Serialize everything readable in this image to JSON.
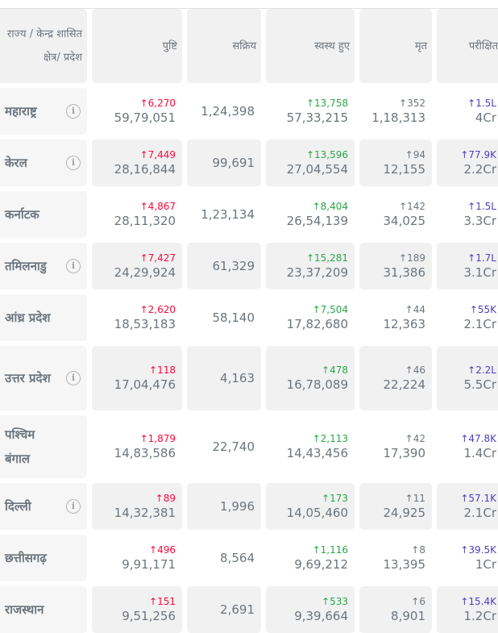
{
  "header": [
    "राज्य / केन्द्र शासित क्षेत्र/ प्रदेश",
    "पुष्टि",
    "सक्रिय",
    "स्वस्थ हुए",
    "मृत",
    "परीक्षित"
  ],
  "colors": {
    "confirmed": "#ff073a",
    "recovered": "#28a745",
    "deceased": "#6c757d",
    "tested": "#4b3fbf"
  },
  "icons": {
    "info": "info-circle-icon",
    "arrow": "arrow-up-icon"
  },
  "rows": [
    {
      "state": "महाराष्ट्र",
      "info": true,
      "confirmed_delta": "↑6,270",
      "confirmed": "59,79,051",
      "active": "1,24,398",
      "recovered_delta": "↑13,758",
      "recovered": "57,33,215",
      "deceased_delta": "↑352",
      "deceased": "1,18,313",
      "tested_delta": "↑1.5L",
      "tested": "4Cr"
    },
    {
      "state": "केरल",
      "info": true,
      "confirmed_delta": "↑7,449",
      "confirmed": "28,16,844",
      "active": "99,691",
      "recovered_delta": "↑13,596",
      "recovered": "27,04,554",
      "deceased_delta": "↑94",
      "deceased": "12,155",
      "tested_delta": "↑77.9K",
      "tested": "2.2Cr"
    },
    {
      "state": "कर्नाटक",
      "info": false,
      "confirmed_delta": "↑4,867",
      "confirmed": "28,11,320",
      "active": "1,23,134",
      "recovered_delta": "↑8,404",
      "recovered": "26,54,139",
      "deceased_delta": "↑142",
      "deceased": "34,025",
      "tested_delta": "↑1.5L",
      "tested": "3.3Cr"
    },
    {
      "state": "तमिलनाडु",
      "info": true,
      "confirmed_delta": "↑7,427",
      "confirmed": "24,29,924",
      "active": "61,329",
      "recovered_delta": "↑15,281",
      "recovered": "23,37,209",
      "deceased_delta": "↑189",
      "deceased": "31,386",
      "tested_delta": "↑1.7L",
      "tested": "3.1Cr"
    },
    {
      "state": "आंध्र प्रदेश",
      "info": false,
      "confirmed_delta": "↑2,620",
      "confirmed": "18,53,183",
      "active": "58,140",
      "recovered_delta": "↑7,504",
      "recovered": "17,82,680",
      "deceased_delta": "↑44",
      "deceased": "12,363",
      "tested_delta": "↑55K",
      "tested": "2.1Cr"
    },
    {
      "state": "उत्तर प्रदेश",
      "info": true,
      "confirmed_delta": "↑118",
      "confirmed": "17,04,476",
      "active": "4,163",
      "recovered_delta": "↑478",
      "recovered": "16,78,089",
      "deceased_delta": "↑46",
      "deceased": "22,224",
      "tested_delta": "↑2.2L",
      "tested": "5.5Cr"
    },
    {
      "state": "पश्चिम बंगाल",
      "info": false,
      "confirmed_delta": "↑1,879",
      "confirmed": "14,83,586",
      "active": "22,740",
      "recovered_delta": "↑2,113",
      "recovered": "14,43,456",
      "deceased_delta": "↑42",
      "deceased": "17,390",
      "tested_delta": "↑47.8K",
      "tested": "1.4Cr"
    },
    {
      "state": "दिल्ली",
      "info": true,
      "confirmed_delta": "↑89",
      "confirmed": "14,32,381",
      "active": "1,996",
      "recovered_delta": "↑173",
      "recovered": "14,05,460",
      "deceased_delta": "↑11",
      "deceased": "24,925",
      "tested_delta": "↑57.1K",
      "tested": "2.1Cr"
    },
    {
      "state": "छत्तीसगढ़",
      "info": false,
      "confirmed_delta": "↑496",
      "confirmed": "9,91,171",
      "active": "8,564",
      "recovered_delta": "↑1,116",
      "recovered": "9,69,212",
      "deceased_delta": "↑8",
      "deceased": "13,395",
      "tested_delta": "↑39.5K",
      "tested": "1Cr"
    },
    {
      "state": "राजस्थान",
      "info": false,
      "confirmed_delta": "↑151",
      "confirmed": "9,51,256",
      "active": "2,691",
      "recovered_delta": "↑533",
      "recovered": "9,39,664",
      "deceased_delta": "↑6",
      "deceased": "8,901",
      "tested_delta": "↑15.4K",
      "tested": "1.2Cr"
    }
  ]
}
